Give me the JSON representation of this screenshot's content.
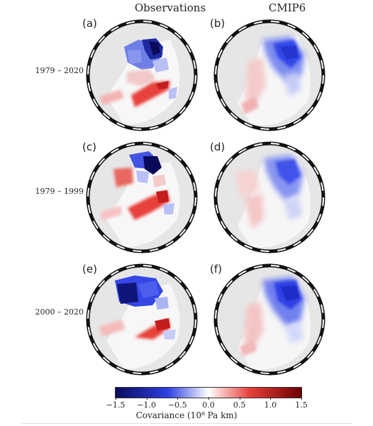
{
  "columns": {
    "left_title": "Observations",
    "right_title": "CMIP6"
  },
  "rows": [
    {
      "label": "1979 – 2020"
    },
    {
      "label": "1979 – 1999"
    },
    {
      "label": "2000 – 2020"
    }
  ],
  "panels": [
    {
      "letter": "(a)"
    },
    {
      "letter": "(b)"
    },
    {
      "letter": "(c)"
    },
    {
      "letter": "(d)"
    },
    {
      "letter": "(e)"
    },
    {
      "letter": "(f)"
    }
  ],
  "colorbar": {
    "title": "Covariance (10⁸ Pa km)",
    "ticks": [
      "−1.5",
      "−1.0",
      "−0.5",
      "0.0",
      "0.5",
      "1.0",
      "1.5"
    ],
    "min": -1.5,
    "max": 1.5,
    "colors": {
      "negative_extreme": "#0a0a5a",
      "negative": "#2b3fe0",
      "zero": "#ffffff",
      "positive": "#e8403a",
      "positive_extreme": "#6b0000"
    }
  },
  "map_colors": {
    "land": "#e6e6e6",
    "ocean_background": "#ffffff",
    "frame": "#111111"
  }
}
